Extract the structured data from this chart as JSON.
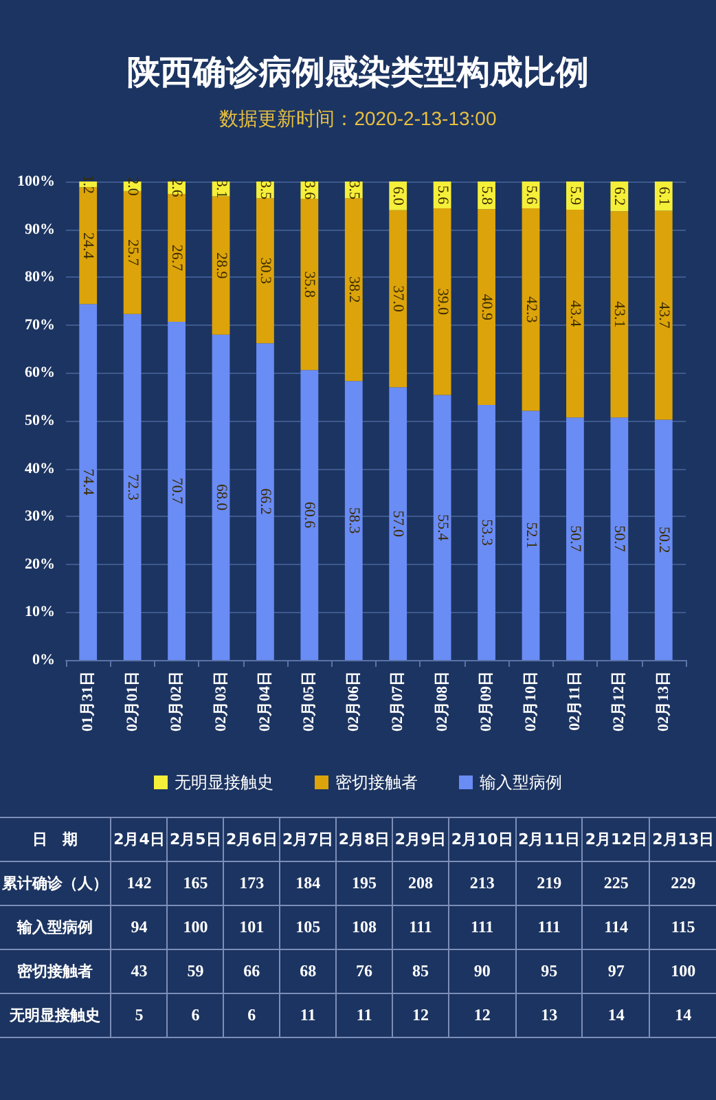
{
  "chart_data": [
    {
      "type": "bar",
      "title": "陕西确诊病例感染类型构成比例",
      "subtitle": "数据更新时间：2020-2-13-13:00",
      "stacked": true,
      "grid": "y",
      "legend": "bottom",
      "categories": [
        "01月31日",
        "02月01日",
        "02月02日",
        "02月03日",
        "02月04日",
        "02月05日",
        "02月06日",
        "02月07日",
        "02月08日",
        "02月09日",
        "02月10日",
        "02月11日",
        "02月12日",
        "02月13日"
      ],
      "ylim": [
        0,
        100
      ],
      "yticks": [
        {
          "value": 0,
          "label": "0%"
        },
        {
          "value": 10,
          "label": "10%"
        },
        {
          "value": 20,
          "label": "20%"
        },
        {
          "value": 30,
          "label": "30%"
        },
        {
          "value": 40,
          "label": "40%"
        },
        {
          "value": 50,
          "label": "50%"
        },
        {
          "value": 60,
          "label": "60%"
        },
        {
          "value": 70,
          "label": "70%"
        },
        {
          "value": 80,
          "label": "80%"
        },
        {
          "value": 90,
          "label": "90%"
        },
        {
          "value": 100,
          "label": "100%"
        }
      ],
      "series": [
        {
          "name": "输入型病例",
          "color": "#6a8cf5",
          "values": [
            74.4,
            72.3,
            70.7,
            68.0,
            66.2,
            60.6,
            58.3,
            57.0,
            55.4,
            53.3,
            52.1,
            50.7,
            50.7,
            50.2
          ],
          "value_labels": [
            "74.4",
            "72.3",
            "70.7",
            "68.0",
            "66.2",
            "60.6",
            "58.3",
            "57.0",
            "55.4",
            "53.3",
            "52.1",
            "50.7",
            "50.7",
            "50.2"
          ]
        },
        {
          "name": "密切接触者",
          "color": "#dca40a",
          "values": [
            24.4,
            25.7,
            26.7,
            28.9,
            30.3,
            35.8,
            38.2,
            37.0,
            39.0,
            40.9,
            42.3,
            43.4,
            43.1,
            43.7
          ],
          "value_labels": [
            "24.4",
            "25.7",
            "26.7",
            "28.9",
            "30.3",
            "35.8",
            "38.2",
            "37.0",
            "39.0",
            "40.9",
            "42.3",
            "43.4",
            "43.1",
            "43.7"
          ]
        },
        {
          "name": "无明显接触史",
          "color": "#f5ef3a",
          "values": [
            1.2,
            2.0,
            2.6,
            3.1,
            3.5,
            3.6,
            3.5,
            6.0,
            5.6,
            5.8,
            5.6,
            5.9,
            6.2,
            6.1
          ],
          "value_labels": [
            "1.2",
            "2.0",
            "2.6",
            "3.1",
            "3.5",
            "3.6",
            "3.5",
            "6.0",
            "5.6",
            "5.8",
            "5.6",
            "5.9",
            "6.2",
            "6.1"
          ]
        }
      ]
    },
    {
      "type": "other",
      "data_labels": true,
      "xlabel": "日　期",
      "categories": [
        "2月4日",
        "2月5日",
        "2月6日",
        "2月7日",
        "2月8日",
        "2月9日",
        "2月10日",
        "2月11日",
        "2月12日",
        "2月13日"
      ],
      "series": [
        {
          "name": "累计确诊（人）",
          "values": [
            142,
            165,
            173,
            184,
            195,
            208,
            213,
            219,
            225,
            229
          ]
        },
        {
          "name": "输入型病例",
          "values": [
            94,
            100,
            101,
            105,
            108,
            111,
            111,
            111,
            114,
            115
          ]
        },
        {
          "name": "密切接触者",
          "values": [
            43,
            59,
            66,
            68,
            76,
            85,
            90,
            95,
            97,
            100
          ]
        },
        {
          "name": "无明显接触史",
          "values": [
            5,
            6,
            6,
            11,
            11,
            12,
            12,
            13,
            14,
            14
          ]
        }
      ]
    }
  ]
}
